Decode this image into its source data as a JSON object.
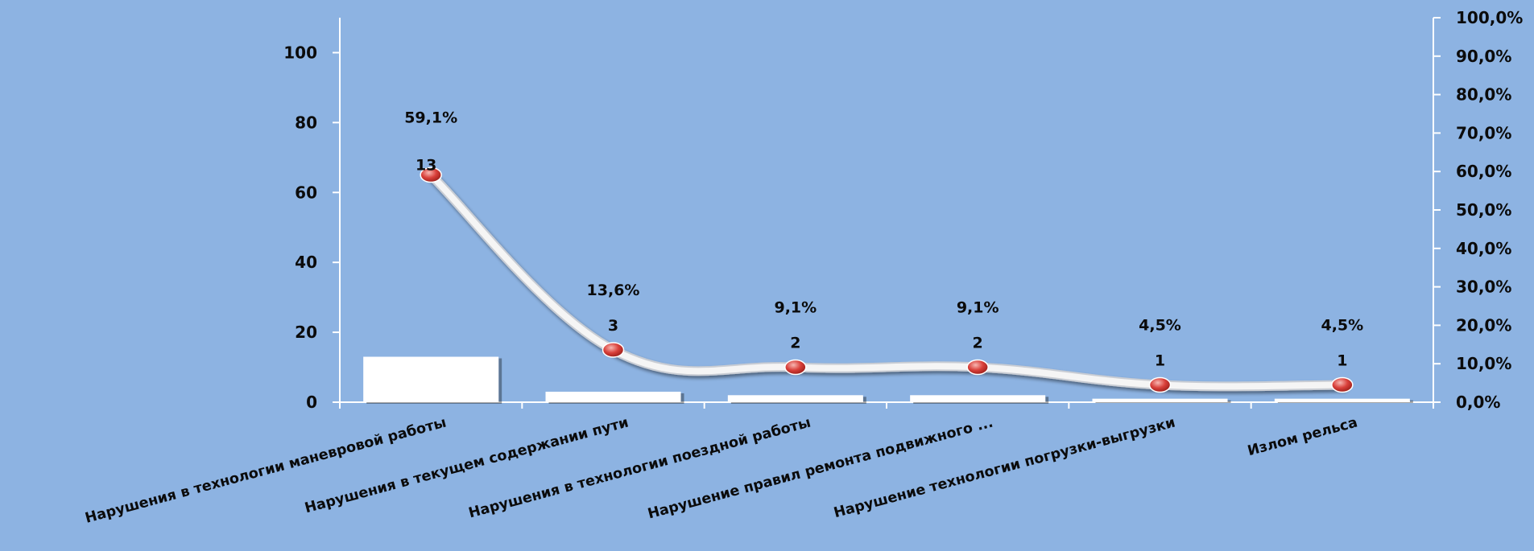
{
  "chart_data": {
    "type": "bar",
    "categories": [
      "Нарушения в технологии  маневровой работы",
      "Нарушения в текущем содержании пути",
      "Нарушения в технологии  поездной  работы",
      "Нарушение правил   ремонта подвижного ...",
      "Нарушение технологии погрузки-выгрузки",
      "Излом  рельса"
    ],
    "series": [
      {
        "type": "bar",
        "values": [
          13,
          3,
          2,
          2,
          1,
          1
        ],
        "value_labels": [
          "13",
          "3",
          "2",
          "2",
          "1",
          "1"
        ],
        "color": "#ffffff"
      },
      {
        "type": "line",
        "axis": "secondary",
        "values": [
          59.1,
          13.6,
          9.1,
          9.1,
          4.5,
          4.5
        ],
        "value_labels": [
          "59,1%",
          "13,6%",
          "9,1%",
          "9,1%",
          "4,5%",
          "4,5%"
        ],
        "line_color": "#f5f5f5",
        "marker_color": "#d9403a"
      }
    ],
    "y_axis": {
      "min": 0,
      "max": 110,
      "ticks": [
        0,
        20,
        40,
        60,
        80,
        100
      ],
      "tick_labels": [
        "0",
        "20",
        "40",
        "60",
        "80",
        "100"
      ]
    },
    "y2_axis": {
      "min": 0,
      "max": 100,
      "ticks": [
        0,
        10,
        20,
        30,
        40,
        50,
        60,
        70,
        80,
        90,
        100
      ],
      "tick_labels": [
        "0,0%",
        "10,0%",
        "20,0%",
        "30,0%",
        "40,0%",
        "50,0%",
        "60,0%",
        "70,0%",
        "80,0%",
        "90,0%",
        "100,0%"
      ]
    },
    "grid": false,
    "legend": "none",
    "colors": {
      "background": "#8db3e2",
      "axis": "#ffffff",
      "text": "#0b0b0b"
    }
  }
}
